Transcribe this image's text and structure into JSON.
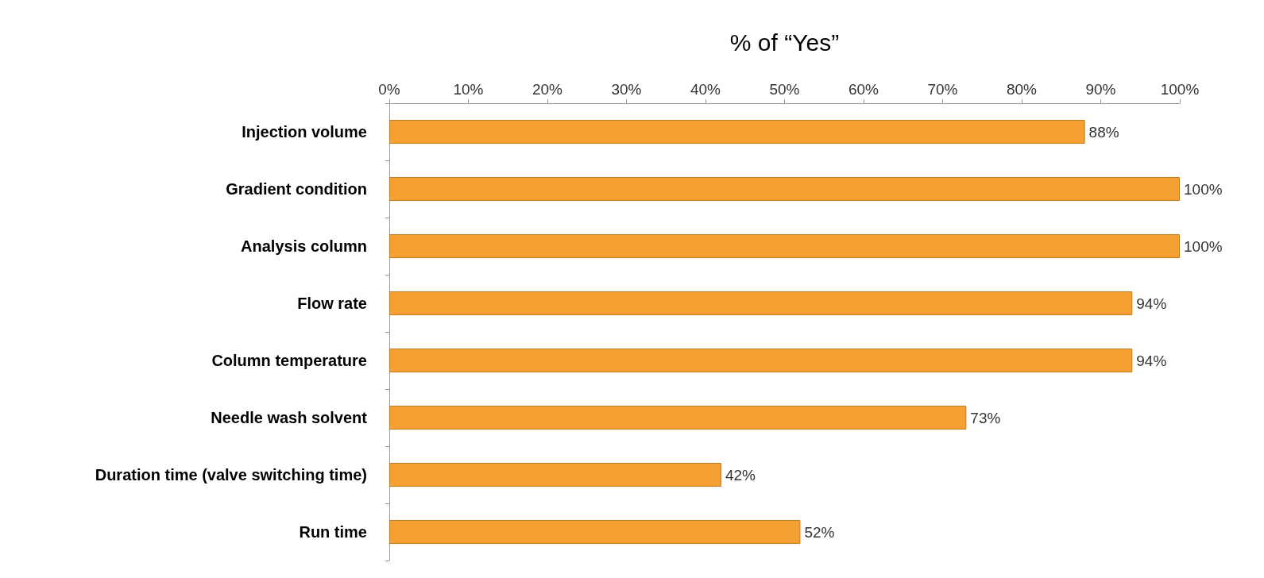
{
  "chart_data": {
    "type": "bar",
    "orientation": "horizontal",
    "xlabel": "% of “Yes”",
    "categories": [
      "Injection volume",
      "Gradient condition",
      "Analysis column",
      "Flow rate",
      "Column temperature",
      "Needle wash solvent",
      "Duration time (valve switching time)",
      "Run time"
    ],
    "values": [
      88,
      100,
      100,
      94,
      94,
      73,
      42,
      52
    ],
    "value_labels": [
      "88%",
      "100%",
      "100%",
      "94%",
      "94%",
      "73%",
      "42%",
      "52%"
    ],
    "color": "#f5a033",
    "xlim": [
      0,
      100
    ],
    "xticks": [
      {
        "value": 0,
        "label": "0%"
      },
      {
        "value": 10,
        "label": "10%"
      },
      {
        "value": 20,
        "label": "20%"
      },
      {
        "value": 30,
        "label": "30%"
      },
      {
        "value": 40,
        "label": "40%"
      },
      {
        "value": 50,
        "label": "50%"
      },
      {
        "value": 60,
        "label": "60%"
      },
      {
        "value": 70,
        "label": "70%"
      },
      {
        "value": 80,
        "label": "80%"
      },
      {
        "value": 90,
        "label": "90%"
      },
      {
        "value": 100,
        "label": "100%"
      }
    ],
    "grid": false
  }
}
